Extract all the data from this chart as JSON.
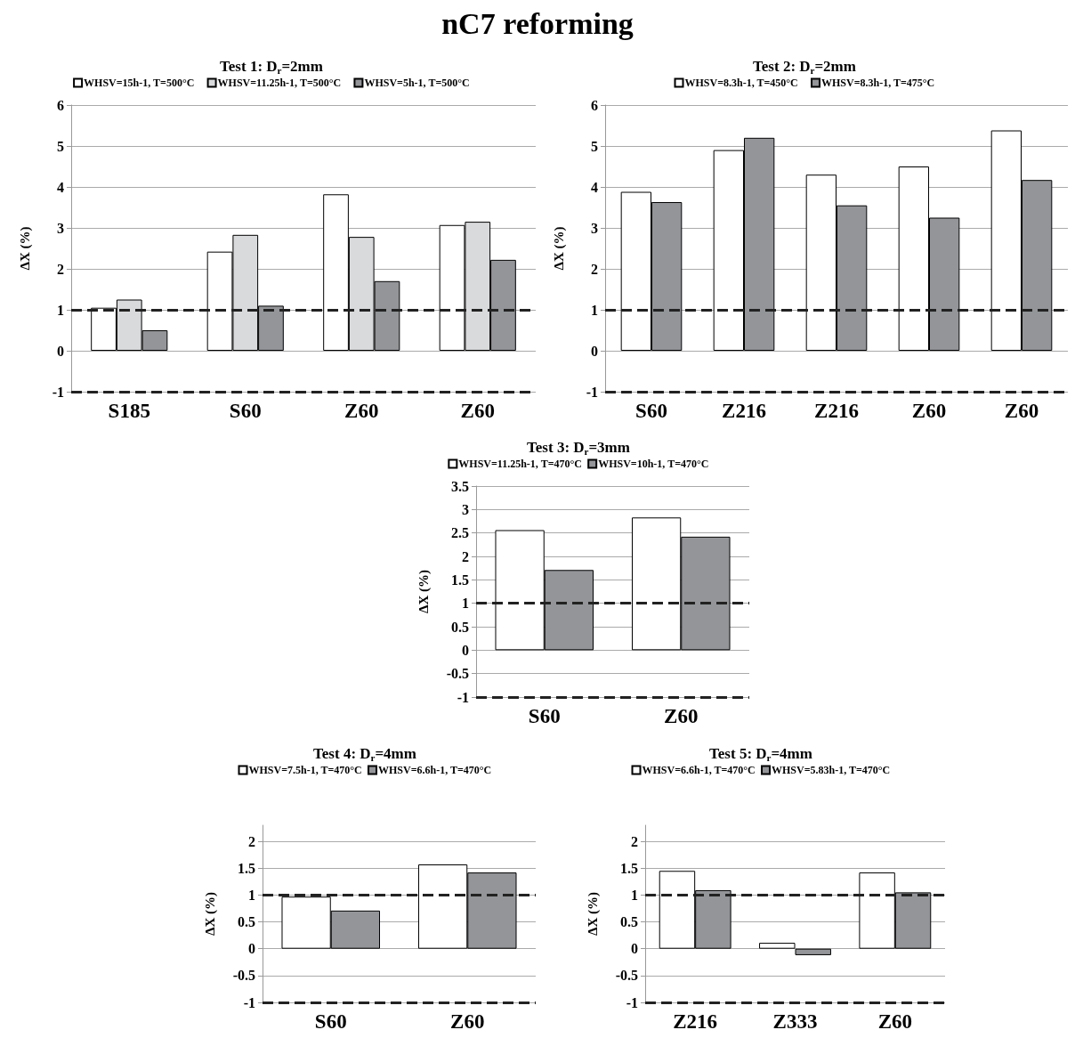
{
  "chart_data": [
    {
      "type": "bar",
      "title": "Test 1: D$_{r}$=2mm",
      "ylabel": "ΔX (%)",
      "annotations": [
        "nC7 reforming"
      ],
      "categories": [
        "S185",
        "S60",
        "Z60",
        "Z60"
      ],
      "series": [
        {
          "name": "WHSV=15h-1, T=500°C",
          "color": "#ffffff",
          "values": [
            1.05,
            2.42,
            3.82,
            3.07
          ]
        },
        {
          "name": "WHSV=11.25h-1, T=500°C",
          "color": "#d9dadc",
          "values": [
            1.25,
            2.83,
            2.78,
            3.15
          ]
        },
        {
          "name": "WHSV=5h-1, T=500°C",
          "color": "#939598",
          "values": [
            0.5,
            1.1,
            1.7,
            2.22
          ]
        }
      ],
      "ylim": [
        -1,
        6
      ],
      "yticks": [
        -1,
        0,
        1,
        2,
        3,
        4,
        5,
        6
      ],
      "grid": "y",
      "legend": "top",
      "ref_lines": [
        {
          "axis": "y",
          "value": 1,
          "color": "#222222",
          "line_style": "dashed"
        },
        {
          "axis": "y",
          "value": -1,
          "color": "#222222",
          "line_style": "dashed"
        }
      ]
    },
    {
      "type": "bar",
      "title": "Test 2: D$_{r}$=2mm",
      "ylabel": "ΔX (%)",
      "categories": [
        "S60",
        "Z216",
        "Z216",
        "Z60",
        "Z60"
      ],
      "series": [
        {
          "name": "WHSV=8.3h-1, T=450°C",
          "color": "#ffffff",
          "values": [
            3.88,
            4.9,
            4.3,
            4.5,
            5.38
          ]
        },
        {
          "name": "WHSV=8.3h-1, T=475°C",
          "color": "#939598",
          "values": [
            3.63,
            5.2,
            3.55,
            3.25,
            4.17
          ]
        }
      ],
      "ylim": [
        -1,
        6
      ],
      "yticks": [
        -1,
        0,
        1,
        2,
        3,
        4,
        5,
        6
      ],
      "grid": "y",
      "legend": "top",
      "ref_lines": [
        {
          "axis": "y",
          "value": 1,
          "color": "#222222",
          "line_style": "dashed"
        },
        {
          "axis": "y",
          "value": -1,
          "color": "#222222",
          "line_style": "dashed"
        }
      ]
    },
    {
      "type": "bar",
      "title": "Test 3: D$_{r}$=3mm",
      "ylabel": "ΔX (%)",
      "categories": [
        "S60",
        "Z60"
      ],
      "series": [
        {
          "name": "WHSV=11.25h-1, T=470°C",
          "color": "#ffffff",
          "values": [
            2.56,
            2.83
          ]
        },
        {
          "name": "WHSV=10h-1, T=470°C",
          "color": "#939598",
          "values": [
            1.71,
            2.42
          ]
        }
      ],
      "ylim": [
        -1,
        3.5
      ],
      "yticks": [
        -1,
        -0.5,
        0,
        0.5,
        1,
        1.5,
        2,
        2.5,
        3,
        3.5
      ],
      "grid": "y",
      "legend": "top",
      "ref_lines": [
        {
          "axis": "y",
          "value": 1,
          "color": "#222222",
          "line_style": "dashed"
        },
        {
          "axis": "y",
          "value": -1,
          "color": "#222222",
          "line_style": "dashed"
        }
      ]
    },
    {
      "type": "bar",
      "title": "Test 4: D$_{r}$=4mm",
      "ylabel": "ΔX (%)",
      "categories": [
        "S60",
        "Z60"
      ],
      "series": [
        {
          "name": "WHSV=7.5h-1, T=470°C",
          "color": "#ffffff",
          "values": [
            0.97,
            1.57
          ]
        },
        {
          "name": "WHSV=6.6h-1, T=470°C",
          "color": "#939598",
          "values": [
            0.71,
            1.42
          ]
        }
      ],
      "ylim": [
        -1,
        2.3
      ],
      "yticks": [
        -1,
        -0.5,
        0,
        0.5,
        1,
        1.5,
        2
      ],
      "grid": "y",
      "legend": "top",
      "ref_lines": [
        {
          "axis": "y",
          "value": 1,
          "color": "#222222",
          "line_style": "dashed"
        },
        {
          "axis": "y",
          "value": -1,
          "color": "#222222",
          "line_style": "dashed"
        }
      ]
    },
    {
      "type": "bar",
      "title": "Test 5: D$_{r}$=4mm",
      "ylabel": "ΔX (%)",
      "categories": [
        "Z216",
        "Z333",
        "Z60"
      ],
      "series": [
        {
          "name": "WHSV=6.6h-1, T=470°C",
          "color": "#ffffff",
          "values": [
            1.45,
            0.11,
            1.42
          ]
        },
        {
          "name": "WHSV=5.83h-1, T=470°C",
          "color": "#939598",
          "values": [
            1.09,
            -0.12,
            1.05
          ]
        }
      ],
      "ylim": [
        -1,
        2.3
      ],
      "yticks": [
        -1,
        -0.5,
        0,
        0.5,
        1,
        1.5,
        2
      ],
      "grid": "y",
      "legend": "top",
      "ref_lines": [
        {
          "axis": "y",
          "value": 1,
          "color": "#222222",
          "line_style": "dashed"
        },
        {
          "axis": "y",
          "value": -1,
          "color": "#222222",
          "line_style": "dashed"
        }
      ]
    }
  ]
}
